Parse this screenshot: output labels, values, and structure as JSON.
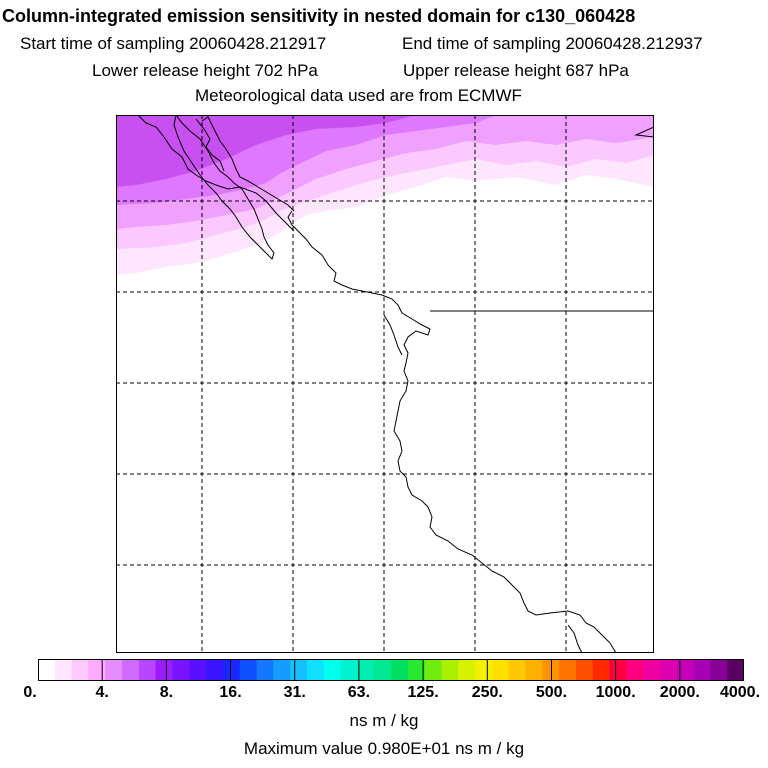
{
  "header": {
    "title": "Column-integrated emission sensitivity in nested domain for c130_060428",
    "start_label": "Start time of sampling 20060428.212917",
    "end_label": "End time of sampling 20060428.212937",
    "lower_label": "Lower release height  702 hPa",
    "upper_label": "Upper release height  687 hPa",
    "met_label": "Meteorological data used are from ECMWF"
  },
  "colorbar": {
    "colors": [
      "#ffffff",
      "#ffe6ff",
      "#ffc8ff",
      "#ffaaff",
      "#e58cff",
      "#d06aff",
      "#b845ff",
      "#9a1cff",
      "#7a14ff",
      "#5a10ff",
      "#3a14ff",
      "#1a28ff",
      "#1050ff",
      "#1478ff",
      "#149cff",
      "#14c0ff",
      "#10e0ff",
      "#00ffee",
      "#00f2d0",
      "#00eeb0",
      "#00e890",
      "#00e060",
      "#28e830",
      "#70ec10",
      "#a8f000",
      "#d6f200",
      "#f4f000",
      "#ffe000",
      "#ffc800",
      "#ffb000",
      "#ff9400",
      "#ff7400",
      "#ff5000",
      "#ff2a00",
      "#ff0040",
      "#ff0080",
      "#f000a0",
      "#dc00b0",
      "#c400b8",
      "#a800b4",
      "#880098",
      "#5a0064"
    ],
    "ticks": [
      "0.",
      "4.",
      "8.",
      "16.",
      "31.",
      "63.",
      "125.",
      "250.",
      "500.",
      "1000.",
      "2000.",
      "4000."
    ],
    "units": "ns m / kg"
  },
  "footer": {
    "max_value_label": "Maximum value  0.980E+01 ns m / kg"
  },
  "map": {
    "plume_colors": [
      "#ffe6ff",
      "#fbc8ff",
      "#f0a0ff",
      "#e078ff",
      "#c850f0"
    ]
  }
}
